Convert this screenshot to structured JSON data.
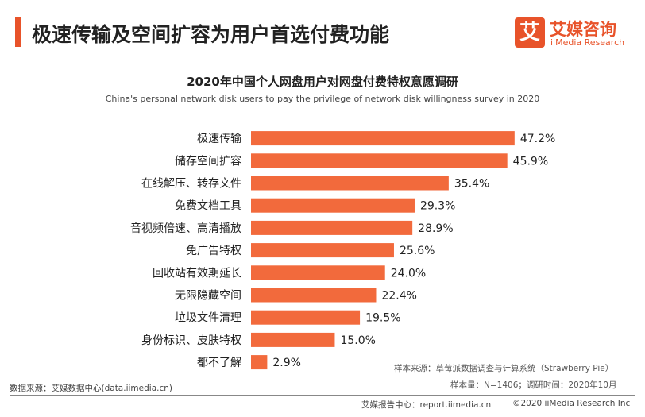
{
  "header": {
    "title": "极速传输及空间扩容为用户首选付费功能"
  },
  "logo": {
    "mark": "艾",
    "name_cn": "艾媒咨询",
    "name_en": "iiMedia Research"
  },
  "chart_data": {
    "type": "bar",
    "orientation": "horizontal",
    "title": "2020年中国个人网盘用户对网盘付费特权意愿调研",
    "subtitle": "China's personal network disk users to pay the privilege of network disk willingness survey in 2020",
    "categories": [
      "极速传输",
      "储存空间扩容",
      "在线解压、转存文件",
      "免费文档工具",
      "音视频倍速、高清播放",
      "免广告特权",
      "回收站有效期延长",
      "无限隐藏空间",
      "垃圾文件清理",
      "身份标识、皮肤特权",
      "都不了解"
    ],
    "values": [
      47.2,
      45.9,
      35.4,
      29.3,
      28.9,
      25.6,
      24.0,
      22.4,
      19.5,
      15.0,
      2.9
    ],
    "labels": [
      "47.2%",
      "45.9%",
      "35.4%",
      "29.3%",
      "28.9%",
      "25.6%",
      "24.0%",
      "22.4%",
      "19.5%",
      "15.0%",
      "2.9%"
    ],
    "unit": "%",
    "bar_color": "#f26a3c",
    "grid": false,
    "legend": "none"
  },
  "notes": {
    "sample_source": "样本来源：草莓派数据调查与计算系统（Strawberry Pie）",
    "sample_size": "样本量：N=1406；调研时间：2020年10月"
  },
  "footer": {
    "data_source": "数据来源：艾媒数据中心(data.iimedia.cn)",
    "report_center": "艾媒报告中心：report.iimedia.cn",
    "copyright": "©2020  iiMedia Research  Inc"
  }
}
